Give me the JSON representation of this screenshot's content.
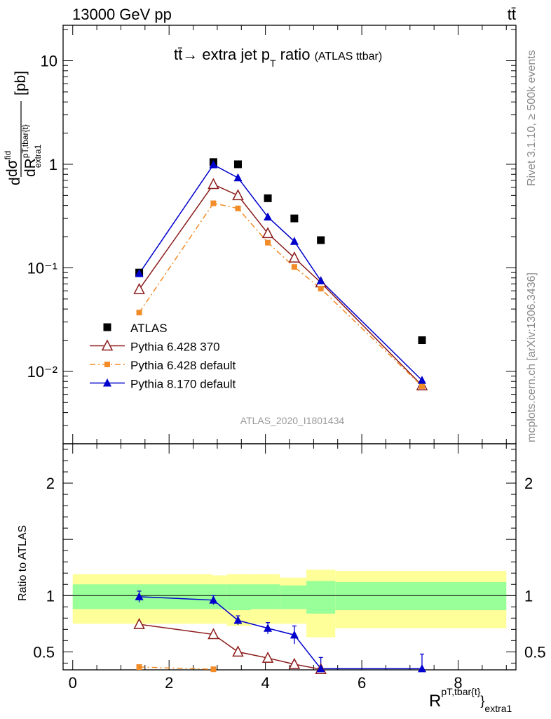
{
  "header": {
    "left": "13000 GeV pp",
    "right": "tt̄"
  },
  "title": {
    "main": "tt̄→ extra jet p",
    "sub": "T",
    "tail": " ratio",
    "small": "(ATLAS ttbar)"
  },
  "side": {
    "rivet": "Rivet 3.1.10, ≥ 500k events",
    "mcplots": "mcplots.cern.ch [arXiv:1306.3436]"
  },
  "analysis_tag": "ATLAS_2020_I1801434",
  "ylabel_top": {
    "d": "d",
    "num": "dσ",
    "num_sup": "fid",
    "den": "dR",
    "den_sup": "pT,tbar{t}",
    "den_sub": "extra1",
    "unit": "[pb]"
  },
  "ylabel_bottom": "Ratio to ATLAS",
  "xlabel": {
    "main": "R",
    "sup": "pT,tbar{t}",
    "brace": "}",
    "sub": "extra1"
  },
  "colors": {
    "atlas": "#000000",
    "p6_370": "#8b1a1a",
    "p6_default": "#f28c28",
    "p8_default": "#0000cc",
    "band_outer": "#ffff99",
    "band_inner": "#99ff99"
  },
  "chart_data": [
    {
      "type": "scatter",
      "panel": "main",
      "yscale": "log",
      "ylim": [
        0.002,
        22
      ],
      "xlim": [
        -0.2,
        9.2
      ],
      "yticks": [
        {
          "v": 10,
          "label": "10"
        },
        {
          "v": 1,
          "label": "1"
        },
        {
          "v": 0.1,
          "label": "10⁻¹"
        },
        {
          "v": 0.01,
          "label": "10⁻²"
        }
      ],
      "legend_position": "bottom-left",
      "series": [
        {
          "name": "ATLAS",
          "key": "atlas",
          "marker": "square",
          "x": [
            1.38,
            2.92,
            3.43,
            4.05,
            4.6,
            5.15,
            7.25
          ],
          "y": [
            0.09,
            1.05,
            1.0,
            0.47,
            0.3,
            0.185,
            0.02
          ]
        },
        {
          "name": "Pythia 6.428 370",
          "key": "p6_370",
          "marker": "triangle-open",
          "line": "solid",
          "x": [
            1.38,
            2.92,
            3.43,
            4.05,
            4.6,
            5.15,
            7.25
          ],
          "y": [
            0.062,
            0.64,
            0.5,
            0.215,
            0.125,
            0.072,
            0.0073
          ]
        },
        {
          "name": "Pythia 6.428 default",
          "key": "p6_default",
          "marker": "square-small",
          "line": "dashdot",
          "x": [
            1.38,
            2.92,
            3.43,
            4.05,
            4.6,
            5.15,
            7.25
          ],
          "y": [
            0.037,
            0.42,
            0.375,
            0.175,
            0.102,
            0.063,
            0.0072
          ]
        },
        {
          "name": "Pythia 8.170 default",
          "key": "p8_default",
          "marker": "triangle",
          "line": "solid",
          "x": [
            1.38,
            2.92,
            3.43,
            4.05,
            4.6,
            5.15,
            7.25
          ],
          "y": [
            0.088,
            0.99,
            0.74,
            0.31,
            0.18,
            0.075,
            0.0082
          ]
        }
      ]
    },
    {
      "type": "scatter",
      "panel": "ratio",
      "ylabel": "Ratio to ATLAS",
      "ylim": [
        0.34,
        2.35
      ],
      "xlim": [
        -0.2,
        9.2
      ],
      "yticks": [
        {
          "v": 2,
          "label": "2"
        },
        {
          "v": 1,
          "label": "1"
        },
        {
          "v": 0.5,
          "label": "0.5"
        }
      ],
      "xticks": [
        {
          "v": 0,
          "label": "0"
        },
        {
          "v": 2,
          "label": "2"
        },
        {
          "v": 4,
          "label": "4"
        },
        {
          "v": 6,
          "label": "6"
        },
        {
          "v": 8,
          "label": "8"
        }
      ],
      "bands": [
        {
          "x0": 0.0,
          "x1": 2.9,
          "outer": [
            0.75,
            1.19
          ],
          "inner": [
            0.88,
            1.1
          ]
        },
        {
          "x0": 2.9,
          "x1": 3.2,
          "outer": [
            0.75,
            1.18
          ],
          "inner": [
            0.88,
            1.1
          ]
        },
        {
          "x0": 3.2,
          "x1": 3.7,
          "outer": [
            0.73,
            1.19
          ],
          "inner": [
            0.87,
            1.1
          ]
        },
        {
          "x0": 3.7,
          "x1": 4.3,
          "outer": [
            0.75,
            1.19
          ],
          "inner": [
            0.88,
            1.1
          ]
        },
        {
          "x0": 4.3,
          "x1": 4.85,
          "outer": [
            0.75,
            1.16
          ],
          "inner": [
            0.88,
            1.09
          ]
        },
        {
          "x0": 4.85,
          "x1": 5.45,
          "outer": [
            0.63,
            1.23
          ],
          "inner": [
            0.84,
            1.13
          ]
        },
        {
          "x0": 5.45,
          "x1": 9.0,
          "outer": [
            0.71,
            1.22
          ],
          "inner": [
            0.87,
            1.12
          ]
        }
      ],
      "series": [
        {
          "name": "Pythia 6.428 370",
          "key": "p6_370",
          "marker": "triangle-open",
          "line": "solid",
          "x": [
            1.38,
            2.92,
            3.43,
            4.05,
            4.6,
            5.15
          ],
          "y": [
            0.745,
            0.655,
            0.5,
            0.445,
            0.39,
            0.345
          ]
        },
        {
          "name": "Pythia 6.428 default",
          "key": "p6_default",
          "marker": "square-small",
          "line": "dashdot",
          "x": [
            1.38,
            2.92
          ],
          "y": [
            0.365,
            0.345
          ]
        },
        {
          "name": "Pythia 8.170 default",
          "key": "p8_default",
          "marker": "triangle",
          "line": "solid",
          "x": [
            1.38,
            2.92,
            3.43,
            4.05,
            4.6,
            5.15,
            7.25
          ],
          "y": [
            0.99,
            0.96,
            0.78,
            0.71,
            0.65,
            0.35,
            0.35
          ],
          "err": [
            0.05,
            0.04,
            0.04,
            0.05,
            0.08,
            0.1,
            0.13
          ]
        }
      ]
    }
  ]
}
